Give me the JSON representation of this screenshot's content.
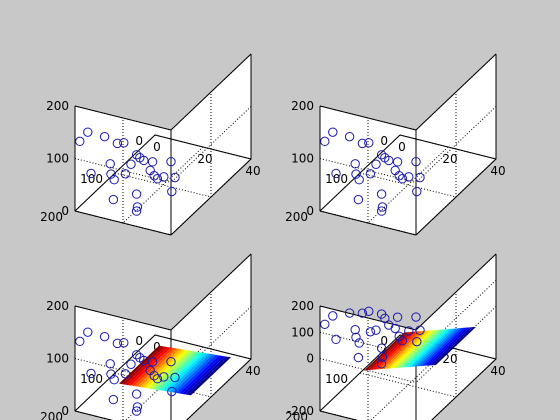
{
  "figure": {
    "background": "#c8c8c8"
  },
  "chart_data": [
    {
      "type": "scatter",
      "x": [
        2,
        2,
        4,
        5,
        6,
        7,
        8,
        9,
        10,
        11,
        12,
        13,
        14,
        15,
        16,
        17,
        18,
        19,
        20,
        21,
        22,
        23,
        24,
        25,
        26,
        27
      ],
      "y": [
        200,
        180,
        150,
        190,
        130,
        120,
        160,
        100,
        170,
        140,
        110,
        180,
        90,
        150,
        200,
        130,
        120,
        160,
        80,
        170,
        110,
        140,
        190,
        100,
        150,
        120
      ],
      "z": [
        135,
        138,
        110,
        70,
        85,
        80,
        70,
        45,
        60,
        40,
        50,
        60,
        30,
        70,
        40,
        65,
        40,
        25,
        30,
        10,
        25,
        50,
        20,
        20,
        55,
        10
      ],
      "marker": "circle",
      "color": "#1a1aaa",
      "xticks": [
        "0",
        "20",
        "40"
      ],
      "yticks": [
        "0",
        "100",
        "200"
      ],
      "zticks": [
        "0",
        "100",
        "200"
      ],
      "xlim": [
        0,
        40
      ],
      "ylim": [
        0,
        200
      ],
      "zlim": [
        0,
        200
      ],
      "grid": true
    },
    {
      "type": "scatter",
      "x": [
        2,
        2,
        4,
        5,
        6,
        7,
        8,
        9,
        10,
        11,
        12,
        13,
        14,
        15,
        16,
        17,
        18,
        19,
        20,
        21,
        22,
        23,
        24,
        25,
        26,
        27
      ],
      "y": [
        200,
        180,
        150,
        190,
        130,
        120,
        160,
        100,
        170,
        140,
        110,
        180,
        90,
        150,
        200,
        130,
        120,
        160,
        80,
        170,
        110,
        140,
        190,
        100,
        150,
        120
      ],
      "z": [
        135,
        138,
        110,
        70,
        85,
        80,
        70,
        45,
        60,
        40,
        50,
        60,
        30,
        70,
        40,
        65,
        40,
        25,
        30,
        10,
        25,
        50,
        20,
        20,
        55,
        10
      ],
      "marker": "circle",
      "color": "#1a1aaa",
      "xticks": [
        "0",
        "20",
        "40"
      ],
      "yticks": [
        "0",
        "100",
        "200"
      ],
      "zticks": [
        "0",
        "100",
        "200"
      ],
      "xlim": [
        0,
        40
      ],
      "ylim": [
        0,
        200
      ],
      "zlim": [
        0,
        200
      ],
      "grid": true
    },
    {
      "type": "scatter",
      "x": [
        2,
        2,
        4,
        5,
        6,
        7,
        8,
        9,
        10,
        11,
        12,
        13,
        14,
        15,
        16,
        17,
        18,
        19,
        20,
        21,
        22,
        23,
        24,
        25,
        26,
        27
      ],
      "y": [
        200,
        180,
        150,
        190,
        130,
        120,
        160,
        100,
        170,
        140,
        110,
        180,
        90,
        150,
        200,
        130,
        120,
        160,
        80,
        170,
        110,
        140,
        190,
        100,
        150,
        120
      ],
      "z": [
        135,
        138,
        110,
        70,
        85,
        80,
        70,
        45,
        60,
        40,
        50,
        60,
        30,
        70,
        40,
        65,
        40,
        25,
        30,
        10,
        25,
        50,
        20,
        20,
        55,
        10
      ],
      "marker": "circle",
      "color": "#1a1aaa",
      "xticks": [
        "0",
        "20",
        "40"
      ],
      "yticks": [
        "0",
        "100",
        "200"
      ],
      "zticks": [
        "0",
        "100",
        "200"
      ],
      "xlim": [
        0,
        40
      ],
      "ylim": [
        0,
        200
      ],
      "zlim": [
        0,
        200
      ],
      "grid": true,
      "surface": {
        "type": "plane",
        "xlim": [
          5,
          35
        ],
        "ylim": [
          20,
          120
        ],
        "z": [
          0,
          12
        ],
        "colormap": "jet"
      }
    },
    {
      "type": "scatter",
      "x": [
        2,
        2,
        4,
        5,
        6,
        7,
        8,
        9,
        10,
        11,
        12,
        13,
        14,
        15,
        16,
        17,
        18,
        19,
        20,
        21,
        22,
        23,
        24,
        25,
        26,
        27
      ],
      "y": [
        200,
        180,
        150,
        190,
        130,
        120,
        160,
        100,
        170,
        140,
        110,
        180,
        90,
        150,
        200,
        130,
        120,
        160,
        80,
        170,
        110,
        140,
        190,
        100,
        150,
        120
      ],
      "z": [
        135,
        138,
        110,
        70,
        85,
        80,
        70,
        45,
        60,
        40,
        50,
        60,
        30,
        70,
        40,
        65,
        40,
        25,
        30,
        10,
        25,
        50,
        20,
        20,
        55,
        10
      ],
      "marker": "circle",
      "color": "#1a1aaa",
      "xticks": [
        "0",
        "20",
        "40"
      ],
      "yticks": [
        "0",
        "100",
        "200"
      ],
      "zticks": [
        "-200",
        "0",
        "100",
        "200"
      ],
      "xlim": [
        0,
        40
      ],
      "ylim": [
        0,
        200
      ],
      "zlim": [
        -200,
        200
      ],
      "grid": true,
      "surface": {
        "type": "plane",
        "xlim": [
          5,
          35
        ],
        "ylim": [
          20,
          120
        ],
        "z": [
          -150,
          -60
        ],
        "colormap": "jet"
      }
    }
  ]
}
